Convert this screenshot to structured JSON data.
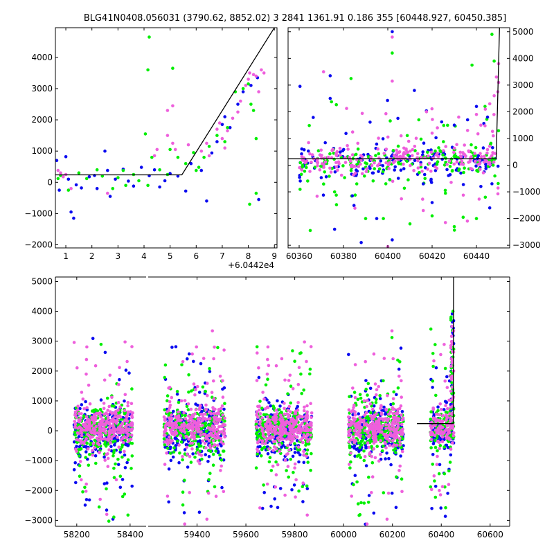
{
  "figure": {
    "title": "BLG41N0408.056031 (3790.62, 8852.02)   3 2841 1361.91 0.186 355 [60448.927, 60450.385]"
  },
  "colors": {
    "blue": "#0a0af0",
    "green": "#00ee00",
    "magenta": "#ee5fdc"
  },
  "chart_data": [
    {
      "type": "scatter",
      "panel": "top-left",
      "x_offset_label": "+6.0442e4",
      "xlim": [
        0.6,
        9.1
      ],
      "ylim": [
        -2100,
        4950
      ],
      "xticks": [
        {
          "value": 1,
          "label": "1"
        },
        {
          "value": 2,
          "label": "2"
        },
        {
          "value": 3,
          "label": "3"
        },
        {
          "value": 4,
          "label": "4"
        },
        {
          "value": 5,
          "label": "5"
        },
        {
          "value": 6,
          "label": "6"
        },
        {
          "value": 7,
          "label": "7"
        },
        {
          "value": 8,
          "label": "8"
        },
        {
          "value": 9,
          "label": "9"
        }
      ],
      "yticks": [
        {
          "value": -2000,
          "label": "−2000"
        },
        {
          "value": -1000,
          "label": "−1000"
        },
        {
          "value": 0,
          "label": "0"
        },
        {
          "value": 1000,
          "label": "1000"
        },
        {
          "value": 2000,
          "label": "2000"
        },
        {
          "value": 3000,
          "label": "3000"
        },
        {
          "value": 4000,
          "label": "4000"
        }
      ],
      "ytick_side": "left",
      "fit_line": [
        [
          0.6,
          240
        ],
        [
          5.45,
          240
        ],
        [
          9.0,
          4950
        ]
      ],
      "series": [
        {
          "color": "blue",
          "points": [
            [
              0.65,
              700
            ],
            [
              0.75,
              -250
            ],
            [
              1.0,
              820
            ],
            [
              1.1,
              100
            ],
            [
              1.2,
              -950
            ],
            [
              1.3,
              -1150
            ],
            [
              1.4,
              -80
            ],
            [
              1.6,
              -180
            ],
            [
              1.9,
              180
            ],
            [
              2.1,
              220
            ],
            [
              2.2,
              -200
            ],
            [
              2.5,
              1000
            ],
            [
              2.6,
              380
            ],
            [
              2.7,
              -450
            ],
            [
              2.9,
              100
            ],
            [
              3.2,
              420
            ],
            [
              3.4,
              40
            ],
            [
              3.6,
              -120
            ],
            [
              3.9,
              480
            ],
            [
              4.2,
              210
            ],
            [
              4.4,
              400
            ],
            [
              4.6,
              -150
            ],
            [
              4.8,
              50
            ],
            [
              5.0,
              280
            ],
            [
              5.3,
              200
            ],
            [
              5.6,
              -280
            ],
            [
              5.8,
              600
            ],
            [
              6.2,
              380
            ],
            [
              6.4,
              -600
            ],
            [
              6.6,
              940
            ],
            [
              6.8,
              1300
            ],
            [
              7.0,
              1850
            ],
            [
              7.1,
              2100
            ],
            [
              7.3,
              1750
            ],
            [
              7.6,
              2500
            ],
            [
              7.8,
              2900
            ],
            [
              8.1,
              3100
            ],
            [
              8.35,
              3350
            ],
            [
              8.4,
              -550
            ]
          ]
        },
        {
          "color": "green",
          "points": [
            [
              0.7,
              120
            ],
            [
              0.8,
              220
            ],
            [
              1.1,
              -250
            ],
            [
              1.5,
              300
            ],
            [
              1.8,
              120
            ],
            [
              2.2,
              400
            ],
            [
              2.4,
              200
            ],
            [
              2.8,
              -200
            ],
            [
              3.0,
              150
            ],
            [
              3.2,
              380
            ],
            [
              3.3,
              -100
            ],
            [
              3.6,
              250
            ],
            [
              3.8,
              50
            ],
            [
              4.05,
              1550
            ],
            [
              4.15,
              -100
            ],
            [
              4.15,
              3600
            ],
            [
              4.2,
              4650
            ],
            [
              4.3,
              800
            ],
            [
              4.6,
              400
            ],
            [
              4.9,
              250
            ],
            [
              5.0,
              1050
            ],
            [
              5.1,
              3650
            ],
            [
              5.3,
              800
            ],
            [
              5.6,
              600
            ],
            [
              5.9,
              950
            ],
            [
              6.0,
              380
            ],
            [
              6.1,
              480
            ],
            [
              6.3,
              800
            ],
            [
              6.5,
              1150
            ],
            [
              6.8,
              1500
            ],
            [
              7.1,
              1300
            ],
            [
              7.2,
              1750
            ],
            [
              7.5,
              2900
            ],
            [
              7.8,
              3000
            ],
            [
              8.0,
              3150
            ],
            [
              8.05,
              -700
            ],
            [
              8.1,
              2500
            ],
            [
              8.2,
              2300
            ],
            [
              8.3,
              1400
            ],
            [
              8.3,
              -350
            ]
          ]
        },
        {
          "color": "magenta",
          "points": [
            [
              0.7,
              380
            ],
            [
              0.8,
              300
            ],
            [
              0.9,
              180
            ],
            [
              1.0,
              250
            ],
            [
              1.2,
              -200
            ],
            [
              2.6,
              -350
            ],
            [
              4.4,
              850
            ],
            [
              4.5,
              1050
            ],
            [
              4.9,
              2300
            ],
            [
              5.1,
              2450
            ],
            [
              5.2,
              1050
            ],
            [
              4.9,
              1500
            ],
            [
              5.1,
              1250
            ],
            [
              5.7,
              1200
            ],
            [
              6.2,
              1000
            ],
            [
              6.4,
              1250
            ],
            [
              6.5,
              850
            ],
            [
              6.8,
              1700
            ],
            [
              6.9,
              1900
            ],
            [
              7.0,
              1400
            ],
            [
              7.1,
              1100
            ],
            [
              7.2,
              1650
            ],
            [
              7.4,
              2050
            ],
            [
              7.6,
              2250
            ],
            [
              7.7,
              2600
            ],
            [
              7.9,
              3100
            ],
            [
              8.0,
              3300
            ],
            [
              8.05,
              3500
            ],
            [
              8.2,
              3450
            ],
            [
              8.3,
              3400
            ],
            [
              8.4,
              2900
            ],
            [
              8.5,
              3600
            ],
            [
              8.6,
              3500
            ]
          ]
        }
      ]
    },
    {
      "type": "scatter",
      "panel": "top-right",
      "xlim": [
        60355,
        60455
      ],
      "ylim": [
        -3100,
        5150
      ],
      "xticks": [
        {
          "value": 60360,
          "label": "60360"
        },
        {
          "value": 60380,
          "label": "60380"
        },
        {
          "value": 60400,
          "label": "60400"
        },
        {
          "value": 60420,
          "label": "60420"
        },
        {
          "value": 60440,
          "label": "60440"
        }
      ],
      "yticks": [
        {
          "value": -3000,
          "label": "−3000"
        },
        {
          "value": -2000,
          "label": "−2000"
        },
        {
          "value": -1000,
          "label": "−1000"
        },
        {
          "value": 0,
          "label": "0"
        },
        {
          "value": 1000,
          "label": "1000"
        },
        {
          "value": 2000,
          "label": "2000"
        },
        {
          "value": 3000,
          "label": "3000"
        },
        {
          "value": 4000,
          "label": "4000"
        },
        {
          "value": 5000,
          "label": "5000"
        }
      ],
      "ytick_side": "right",
      "fit_line": [
        [
          60355,
          240
        ],
        [
          60448.9,
          240
        ],
        [
          60450.4,
          5150
        ]
      ],
      "cloud": {
        "x_range": [
          60360,
          60450
        ],
        "center": 220,
        "spread": 260,
        "count_per_series": 170
      },
      "series": [
        {
          "color": "blue",
          "points": [
            [
              60374,
              3350
            ],
            [
              60374,
              2500
            ],
            [
              60402,
              5000
            ],
            [
              60412,
              2800
            ],
            [
              60395,
              -2000
            ],
            [
              60376,
              -2400
            ],
            [
              60388,
              -2900
            ],
            [
              60402,
              -2800
            ],
            [
              60430,
              1500
            ],
            [
              60436,
              1700
            ],
            [
              60440,
              2200
            ],
            [
              60445,
              1800
            ],
            [
              60446,
              -1600
            ],
            [
              60442,
              -800
            ],
            [
              60416,
              -700
            ],
            [
              60384,
              -1150
            ],
            [
              60420,
              -1400
            ]
          ]
        },
        {
          "color": "green",
          "points": [
            [
              60365,
              -2450
            ],
            [
              60376,
              -1000
            ],
            [
              60390,
              -2000
            ],
            [
              60398,
              -2000
            ],
            [
              60402,
              4200
            ],
            [
              60410,
              -2200
            ],
            [
              60420,
              -1900
            ],
            [
              60430,
              -2300
            ],
            [
              60434,
              -1950
            ],
            [
              60440,
              -2000
            ],
            [
              60438,
              3750
            ],
            [
              60447,
              4900
            ],
            [
              60448,
              3900
            ],
            [
              60444,
              -1200
            ],
            [
              60414,
              1700
            ],
            [
              60386,
              -700
            ],
            [
              60426,
              -1050
            ]
          ]
        },
        {
          "color": "magenta",
          "points": [
            [
              60371,
              3500
            ],
            [
              60402,
              4800
            ],
            [
              60402,
              3150
            ],
            [
              60400,
              -3050
            ],
            [
              60426,
              -2150
            ],
            [
              60416,
              -1700
            ],
            [
              60432,
              1800
            ],
            [
              60436,
              1300
            ],
            [
              60440,
              1900
            ],
            [
              60444,
              2100
            ],
            [
              60448,
              2600
            ],
            [
              60449,
              3300
            ],
            [
              60450,
              3800
            ],
            [
              60450,
              3100
            ],
            [
              60446,
              2300
            ],
            [
              60442,
              1500
            ],
            [
              60406,
              1100
            ],
            [
              60420,
              1200
            ]
          ]
        }
      ]
    },
    {
      "type": "scatter",
      "panel": "bottom",
      "xlim": [
        58120,
        60680
      ],
      "ylim": [
        -3200,
        5150
      ],
      "xticks": [
        {
          "value": 58200,
          "label": "58200"
        },
        {
          "value": 58400,
          "label": "58400"
        },
        {
          "value": 59400,
          "label": "59400"
        },
        {
          "value": 59600,
          "label": "59600"
        },
        {
          "value": 59800,
          "label": "59800"
        },
        {
          "value": 60000,
          "label": "60000"
        },
        {
          "value": 60200,
          "label": "60200"
        },
        {
          "value": 60400,
          "label": "60400"
        },
        {
          "value": 60600,
          "label": "60600"
        }
      ],
      "yticks": [
        {
          "value": -3000,
          "label": "−3000"
        },
        {
          "value": -2000,
          "label": "−2000"
        },
        {
          "value": -1000,
          "label": "−1000"
        },
        {
          "value": 0,
          "label": "0"
        },
        {
          "value": 1000,
          "label": "1000"
        },
        {
          "value": 2000,
          "label": "2000"
        },
        {
          "value": 3000,
          "label": "3000"
        },
        {
          "value": 4000,
          "label": "4000"
        },
        {
          "value": 5000,
          "label": "5000"
        }
      ],
      "ytick_side": "left",
      "fit_line": [
        [
          60300,
          240
        ],
        [
          60448.9,
          240
        ],
        [
          60450.4,
          5150
        ]
      ],
      "seasons": [
        {
          "x_range": [
            58190,
            58410
          ]
        },
        {
          "x_range": [
            59265,
            59515
          ]
        },
        {
          "x_range": [
            59640,
            59870
          ]
        },
        {
          "x_range": [
            60020,
            60245
          ]
        },
        {
          "x_range": [
            60355,
            60452
          ]
        }
      ]
    }
  ]
}
